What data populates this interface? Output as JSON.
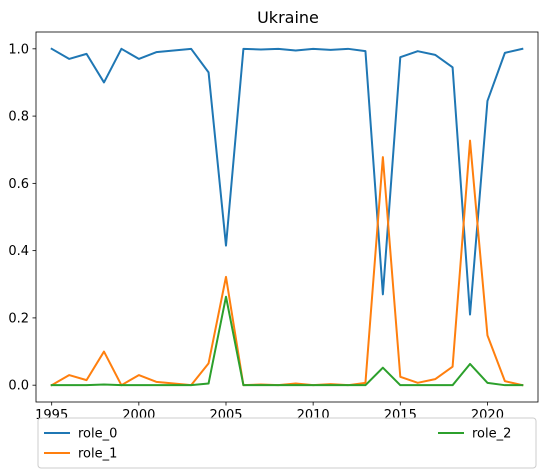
{
  "chart_data": {
    "type": "line",
    "title": "Ukraine",
    "xlabel": "",
    "ylabel": "",
    "xlim": [
      1994.1,
      2022.9
    ],
    "ylim": [
      -0.05,
      1.05
    ],
    "xticks": [
      1995,
      2000,
      2005,
      2010,
      2015,
      2020
    ],
    "yticks": [
      0.0,
      0.2,
      0.4,
      0.6,
      0.8,
      1.0
    ],
    "xtick_labels": [
      "1995",
      "2000",
      "2005",
      "2010",
      "2015",
      "2020"
    ],
    "ytick_labels": [
      "0.0",
      "0.2",
      "0.4",
      "0.6",
      "0.8",
      "1.0"
    ],
    "grid": false,
    "legend": {
      "placement": "below-plot",
      "columns": 2
    },
    "x": [
      1995,
      1996,
      1997,
      1998,
      1999,
      2000,
      2001,
      2002,
      2003,
      2004,
      2005,
      2006,
      2007,
      2008,
      2009,
      2010,
      2011,
      2012,
      2013,
      2014,
      2015,
      2016,
      2017,
      2018,
      2019,
      2020,
      2021,
      2022
    ],
    "series": [
      {
        "name": "role_0",
        "color": "#1f77b4",
        "values": [
          1.0,
          0.97,
          0.985,
          0.9,
          1.0,
          0.97,
          0.99,
          0.995,
          1.0,
          0.93,
          0.415,
          1.0,
          0.998,
          1.0,
          0.995,
          1.0,
          0.997,
          1.0,
          0.993,
          0.27,
          0.975,
          0.993,
          0.982,
          0.945,
          0.21,
          0.845,
          0.988,
          1.0
        ]
      },
      {
        "name": "role_1",
        "color": "#ff7f0e",
        "values": [
          0.0,
          0.03,
          0.015,
          0.1,
          0.0,
          0.03,
          0.01,
          0.005,
          0.0,
          0.065,
          0.322,
          0.0,
          0.002,
          0.0,
          0.005,
          0.0,
          0.003,
          0.0,
          0.007,
          0.678,
          0.025,
          0.007,
          0.018,
          0.055,
          0.727,
          0.148,
          0.012,
          0.0
        ]
      },
      {
        "name": "role_2",
        "color": "#2ca02c",
        "values": [
          0.0,
          0.0,
          0.0,
          0.002,
          0.0,
          0.0,
          0.0,
          0.0,
          0.0,
          0.005,
          0.263,
          0.0,
          0.0,
          0.0,
          0.0,
          0.0,
          0.0,
          0.0,
          0.0,
          0.052,
          0.0,
          0.0,
          0.0,
          0.0,
          0.063,
          0.007,
          0.0,
          0.0
        ]
      }
    ]
  }
}
